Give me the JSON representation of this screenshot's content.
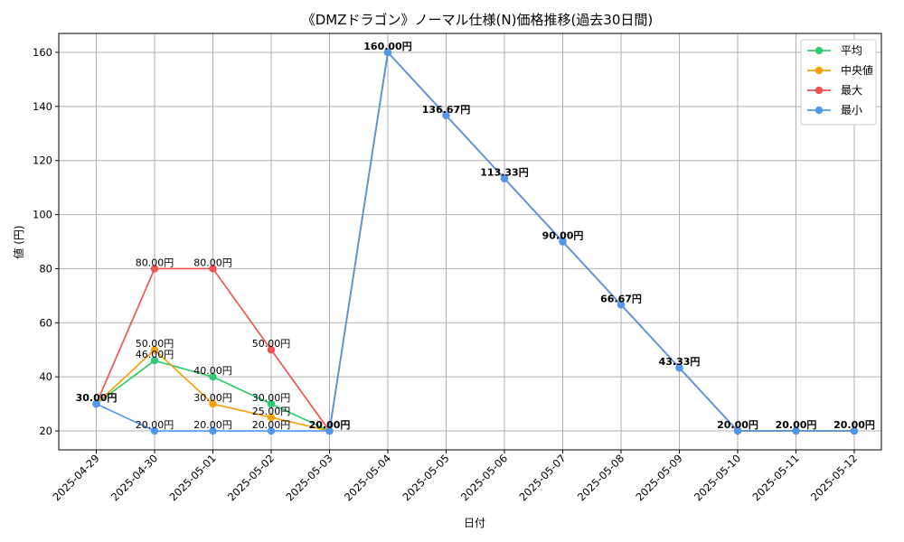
{
  "chart_data": {
    "type": "line",
    "title": "《DMZドラゴン》ノーマル仕様(N)価格推移(過去30日間)",
    "xlabel": "日付",
    "ylabel": "値 (円)",
    "ylim": [
      13,
      167
    ],
    "yticks": [
      20,
      40,
      60,
      80,
      100,
      120,
      140,
      160
    ],
    "ytick_labels": [
      "20",
      "40",
      "60",
      "80",
      "100",
      "120",
      "140",
      "160"
    ],
    "grid": true,
    "legend_position": "top-right",
    "categories": [
      "2025-04-29",
      "2025-04-30",
      "2025-05-01",
      "2025-05-02",
      "2025-05-03",
      "2025-05-04",
      "2025-05-05",
      "2025-05-06",
      "2025-05-07",
      "2025-05-08",
      "2025-05-09",
      "2025-05-10",
      "2025-05-11",
      "2025-05-12"
    ],
    "series": [
      {
        "name": "平均",
        "color": "#2ecc71",
        "values": [
          30,
          46,
          40,
          30,
          20,
          160,
          136.67,
          113.33,
          90,
          66.67,
          43.33,
          20,
          20,
          20
        ]
      },
      {
        "name": "中央値",
        "color": "#f5a20a",
        "values": [
          30,
          50,
          30,
          25,
          20,
          160,
          136.67,
          113.33,
          90,
          66.67,
          43.33,
          20,
          20,
          20
        ]
      },
      {
        "name": "最大",
        "color": "#ef5350",
        "values": [
          30,
          80,
          80,
          50,
          20,
          160,
          136.67,
          113.33,
          90,
          66.67,
          43.33,
          20,
          20,
          20
        ]
      },
      {
        "name": "最小",
        "color": "#4f97ef",
        "values": [
          30,
          20,
          20,
          20,
          20,
          160,
          136.67,
          113.33,
          90,
          66.67,
          43.33,
          20,
          20,
          20
        ]
      }
    ],
    "data_labels": [
      {
        "index": 0,
        "value": 30,
        "text": "30.00円",
        "bold": true
      },
      {
        "index": 1,
        "value": 80,
        "text": "80.00円"
      },
      {
        "index": 1,
        "value": 50,
        "text": "50.00円"
      },
      {
        "index": 1,
        "value": 46,
        "text": "46.00円"
      },
      {
        "index": 1,
        "value": 20,
        "text": "20.00円"
      },
      {
        "index": 2,
        "value": 80,
        "text": "80.00円"
      },
      {
        "index": 2,
        "value": 40,
        "text": "40.00円"
      },
      {
        "index": 2,
        "value": 30,
        "text": "30.00円"
      },
      {
        "index": 2,
        "value": 20,
        "text": "20.00円"
      },
      {
        "index": 3,
        "value": 50,
        "text": "50.00円"
      },
      {
        "index": 3,
        "value": 30,
        "text": "30.00円"
      },
      {
        "index": 3,
        "value": 25,
        "text": "25.00円"
      },
      {
        "index": 3,
        "value": 20,
        "text": "20.00円"
      },
      {
        "index": 4,
        "value": 20,
        "text": "20.00円",
        "bold": true
      },
      {
        "index": 5,
        "value": 160,
        "text": "160.00円",
        "bold": true
      },
      {
        "index": 6,
        "value": 136.67,
        "text": "136.67円",
        "bold": true
      },
      {
        "index": 7,
        "value": 113.33,
        "text": "113.33円",
        "bold": true
      },
      {
        "index": 8,
        "value": 90,
        "text": "90.00円",
        "bold": true
      },
      {
        "index": 9,
        "value": 66.67,
        "text": "66.67円",
        "bold": true
      },
      {
        "index": 10,
        "value": 43.33,
        "text": "43.33円",
        "bold": true
      },
      {
        "index": 11,
        "value": 20,
        "text": "20.00円",
        "bold": true
      },
      {
        "index": 12,
        "value": 20,
        "text": "20.00円",
        "bold": true
      },
      {
        "index": 13,
        "value": 20,
        "text": "20.00円",
        "bold": true
      }
    ]
  }
}
